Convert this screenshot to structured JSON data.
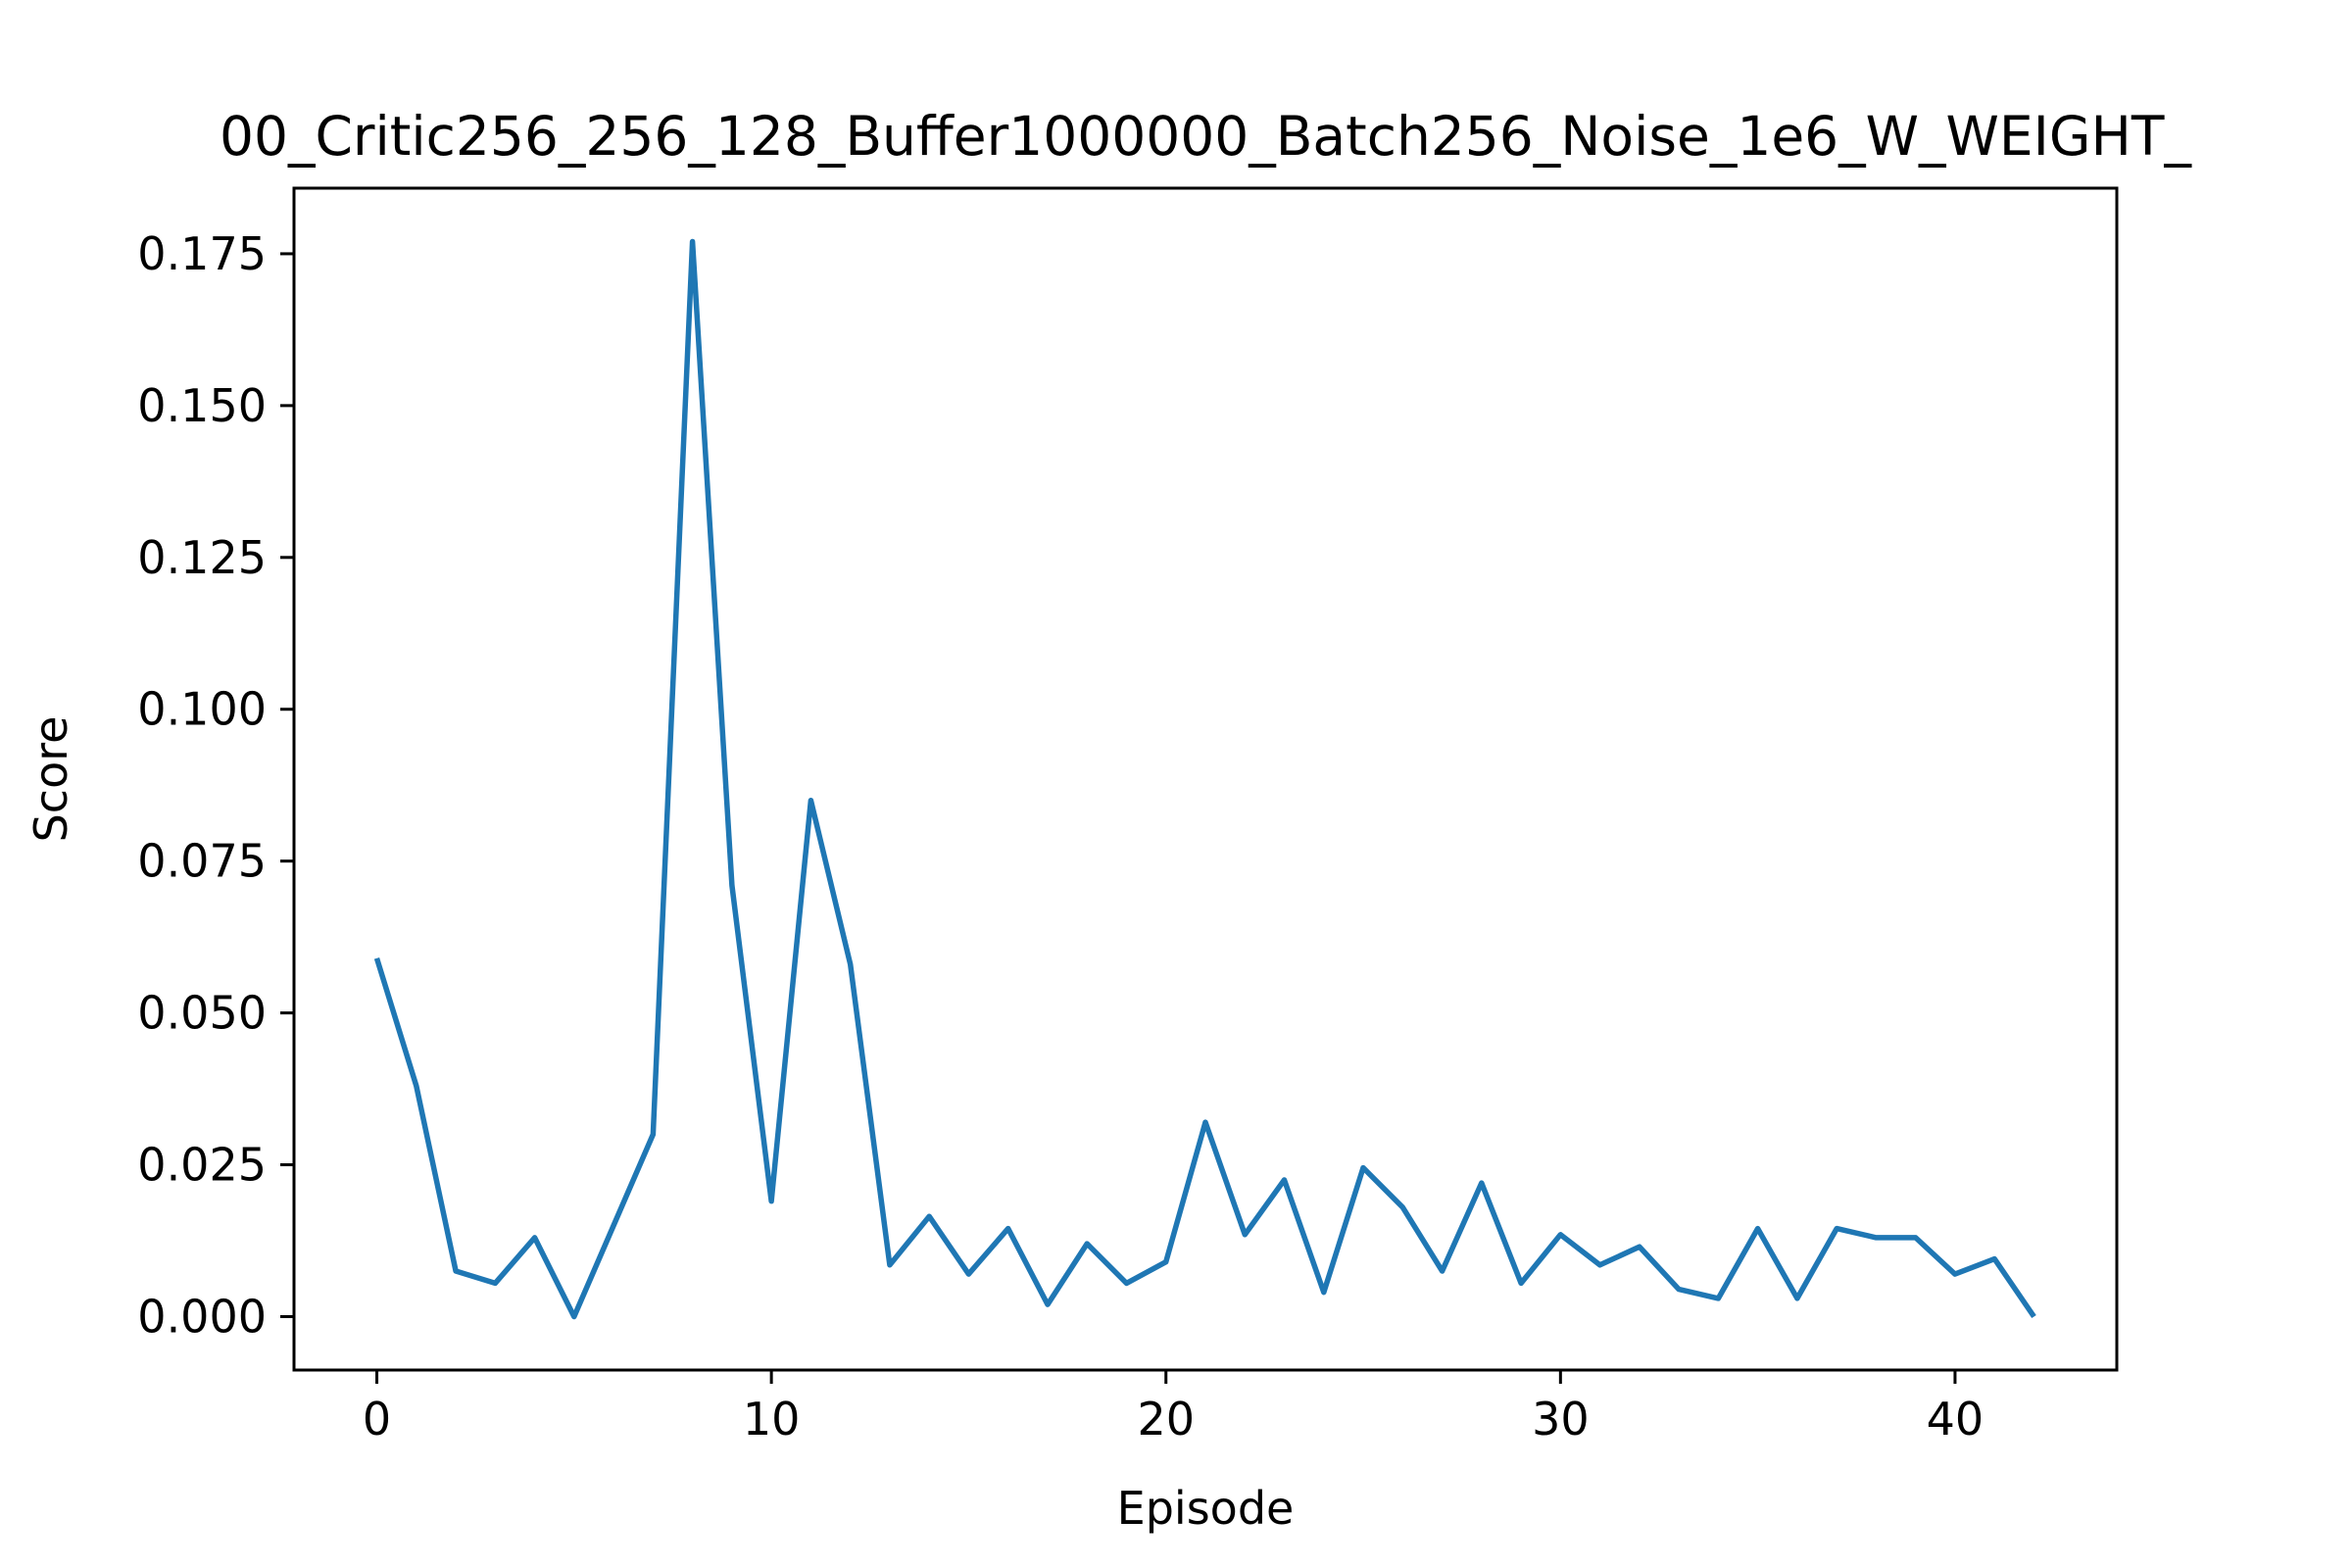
{
  "chart_data": {
    "type": "line",
    "title": "00_Critic256_256_128_Buffer1000000_Batch256_Noise_1e6_W_WEIGHT_",
    "xlabel": "Episode",
    "ylabel": "Score",
    "xlim": [
      -2.1,
      44.1
    ],
    "ylim": [
      -0.0088,
      0.1858
    ],
    "xticks": [
      0,
      10,
      20,
      30,
      40
    ],
    "yticks": [
      0.0,
      0.025,
      0.05,
      0.075,
      0.1,
      0.125,
      0.15,
      0.175
    ],
    "ytick_labels": [
      "0.000",
      "0.025",
      "0.050",
      "0.075",
      "0.100",
      "0.125",
      "0.150",
      "0.175"
    ],
    "grid": false,
    "series": [
      {
        "color": "#1f77b4",
        "x": [
          0,
          1,
          2,
          3,
          4,
          5,
          6,
          7,
          8,
          9,
          10,
          11,
          12,
          13,
          14,
          15,
          16,
          17,
          18,
          19,
          20,
          21,
          22,
          23,
          24,
          25,
          26,
          27,
          28,
          29,
          30,
          31,
          32,
          33,
          34,
          35,
          36,
          37,
          38,
          39,
          40,
          41,
          42
        ],
        "values": [
          0.059,
          0.038,
          0.0075,
          0.0055,
          0.013,
          0.0,
          0.015,
          0.03,
          0.177,
          0.071,
          0.019,
          0.085,
          0.058,
          0.0085,
          0.0165,
          0.007,
          0.0145,
          0.002,
          0.012,
          0.0055,
          0.009,
          0.032,
          0.0135,
          0.0225,
          0.004,
          0.0245,
          0.018,
          0.0075,
          0.022,
          0.0055,
          0.0135,
          0.0085,
          0.0115,
          0.0045,
          0.003,
          0.0145,
          0.003,
          0.0145,
          0.013,
          0.013,
          0.007,
          0.0095,
          0.0
        ]
      }
    ]
  }
}
